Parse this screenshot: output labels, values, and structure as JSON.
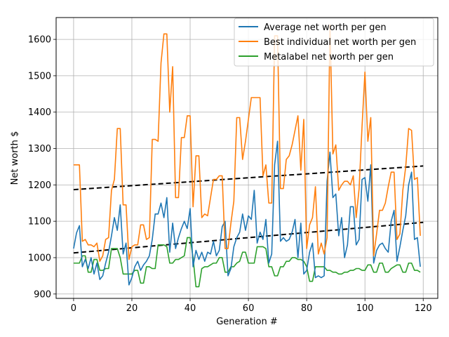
{
  "chart_data": {
    "type": "line",
    "title": "",
    "xlabel": "Generation #",
    "ylabel": "Net worth $",
    "xlim": [
      -6,
      125
    ],
    "ylim": [
      888,
      1660
    ],
    "xticks": [
      0,
      20,
      40,
      60,
      80,
      100,
      120
    ],
    "yticks": [
      900,
      1000,
      1100,
      1200,
      1300,
      1400,
      1500,
      1600
    ],
    "grid": true,
    "legend_position": "top-right",
    "series": [
      {
        "name": "Average net worth per gen",
        "color": "#1f77b4",
        "x": [
          0,
          1,
          2,
          3,
          4,
          5,
          6,
          7,
          8,
          9,
          10,
          11,
          12,
          13,
          14,
          15,
          16,
          17,
          18,
          19,
          20,
          21,
          22,
          23,
          24,
          25,
          26,
          27,
          28,
          29,
          30,
          31,
          32,
          33,
          34,
          35,
          36,
          37,
          38,
          39,
          40,
          41,
          42,
          43,
          44,
          45,
          46,
          47,
          48,
          49,
          50,
          51,
          52,
          53,
          54,
          55,
          56,
          57,
          58,
          59,
          60,
          61,
          62,
          63,
          64,
          65,
          66,
          67,
          68,
          69,
          70,
          71,
          72,
          73,
          74,
          75,
          76,
          77,
          78,
          79,
          80,
          81,
          82,
          83,
          84,
          85,
          86,
          87,
          88,
          89,
          90,
          91,
          92,
          93,
          94,
          95,
          96,
          97,
          98,
          99,
          100,
          101,
          102,
          103,
          104,
          105,
          106,
          107,
          108,
          109,
          110,
          111,
          112,
          113,
          114,
          115,
          116,
          117,
          118,
          119
        ],
        "values": [
          1025,
          1068,
          1088,
          975,
          995,
          970,
          1000,
          955,
          985,
          940,
          950,
          985,
          1015,
          1060,
          1110,
          1075,
          1145,
          1010,
          1040,
          925,
          945,
          975,
          990,
          965,
          980,
          990,
          1005,
          1050,
          1120,
          1120,
          1150,
          1110,
          1165,
          1015,
          1095,
          1025,
          1055,
          1080,
          1100,
          1080,
          1135,
          975,
          1020,
          995,
          1015,
          990,
          1015,
          1010,
          1045,
          1005,
          1020,
          1085,
          1100,
          950,
          970,
          1030,
          1055,
          1070,
          1120,
          1075,
          1115,
          1105,
          1185,
          1040,
          1070,
          1050,
          1105,
          985,
          1010,
          1255,
          1320,
          1045,
          1055,
          1045,
          1050,
          1070,
          1105,
          1000,
          1095,
          955,
          965,
          1015,
          1040,
          945,
          950,
          945,
          950,
          1210,
          1290,
          1165,
          1175,
          1060,
          1110,
          1000,
          1035,
          1140,
          1140,
          1035,
          1050,
          1215,
          1220,
          1155,
          1255,
          985,
          1020,
          1035,
          1040,
          1025,
          1015,
          1100,
          1130,
          990,
          1030,
          1075,
          1115,
          1200,
          1235,
          1050,
          1055,
          975
        ]
      },
      {
        "name": "Best individual net worth per gen",
        "color": "#ff7f0e",
        "x": [
          0,
          1,
          2,
          3,
          4,
          5,
          6,
          7,
          8,
          9,
          10,
          11,
          12,
          13,
          14,
          15,
          16,
          17,
          18,
          19,
          20,
          21,
          22,
          23,
          24,
          25,
          26,
          27,
          28,
          29,
          30,
          31,
          32,
          33,
          34,
          35,
          36,
          37,
          38,
          39,
          40,
          41,
          42,
          43,
          44,
          45,
          46,
          47,
          48,
          49,
          50,
          51,
          52,
          53,
          54,
          55,
          56,
          57,
          58,
          59,
          60,
          61,
          62,
          63,
          64,
          65,
          66,
          67,
          68,
          69,
          70,
          71,
          72,
          73,
          74,
          75,
          76,
          77,
          78,
          79,
          80,
          81,
          82,
          83,
          84,
          85,
          86,
          87,
          88,
          89,
          90,
          91,
          92,
          93,
          94,
          95,
          96,
          97,
          98,
          99,
          100,
          101,
          102,
          103,
          104,
          105,
          106,
          107,
          108,
          109,
          110,
          111,
          112,
          113,
          114,
          115,
          116,
          117,
          118,
          119
        ],
        "values": [
          1255,
          1255,
          1255,
          1045,
          1050,
          1035,
          1035,
          1030,
          1040,
          990,
          1005,
          1050,
          1055,
          1185,
          1215,
          1355,
          1355,
          1145,
          1145,
          995,
          1030,
          1035,
          1035,
          1090,
          1090,
          1050,
          1055,
          1325,
          1325,
          1320,
          1535,
          1615,
          1615,
          1400,
          1525,
          1165,
          1165,
          1330,
          1330,
          1390,
          1390,
          1140,
          1280,
          1280,
          1110,
          1120,
          1115,
          1165,
          1215,
          1215,
          1225,
          1225,
          1025,
          1025,
          1095,
          1155,
          1385,
          1385,
          1270,
          1320,
          1380,
          1440,
          1440,
          1440,
          1440,
          1225,
          1255,
          1150,
          1150,
          1610,
          1610,
          1190,
          1190,
          1270,
          1280,
          1310,
          1350,
          1390,
          1240,
          1380,
          1025,
          1090,
          1110,
          1195,
          1010,
          1040,
          1010,
          1055,
          1640,
          1285,
          1310,
          1185,
          1200,
          1210,
          1210,
          1200,
          1225,
          1110,
          1190,
          1360,
          1510,
          1320,
          1385,
          1005,
          1065,
          1130,
          1130,
          1150,
          1195,
          1235,
          1235,
          1050,
          1065,
          1185,
          1250,
          1355,
          1350,
          1215,
          1220,
          1060
        ]
      },
      {
        "name": "Metalabel net worth per gen",
        "color": "#2ca02c",
        "x": [
          0,
          1,
          2,
          3,
          4,
          5,
          6,
          7,
          8,
          9,
          10,
          11,
          12,
          13,
          14,
          15,
          16,
          17,
          18,
          19,
          20,
          21,
          22,
          23,
          24,
          25,
          26,
          27,
          28,
          29,
          30,
          31,
          32,
          33,
          34,
          35,
          36,
          37,
          38,
          39,
          40,
          41,
          42,
          43,
          44,
          45,
          46,
          47,
          48,
          49,
          50,
          51,
          52,
          53,
          54,
          55,
          56,
          57,
          58,
          59,
          60,
          61,
          62,
          63,
          64,
          65,
          66,
          67,
          68,
          69,
          70,
          71,
          72,
          73,
          74,
          75,
          76,
          77,
          78,
          79,
          80,
          81,
          82,
          83,
          84,
          85,
          86,
          87,
          88,
          89,
          90,
          91,
          92,
          93,
          94,
          95,
          96,
          97,
          98,
          99,
          100,
          101,
          102,
          103,
          104,
          105,
          106,
          107,
          108,
          109,
          110,
          111,
          112,
          113,
          114,
          115,
          116,
          117,
          118,
          119
        ],
        "values": [
          985,
          985,
          985,
          1005,
          1005,
          960,
          960,
          995,
          995,
          965,
          965,
          970,
          970,
          1025,
          1025,
          1025,
          1000,
          955,
          955,
          955,
          955,
          965,
          965,
          930,
          930,
          975,
          975,
          970,
          970,
          1035,
          1035,
          1035,
          1030,
          985,
          985,
          995,
          995,
          1000,
          1005,
          1055,
          1055,
          1000,
          920,
          920,
          970,
          975,
          975,
          980,
          985,
          985,
          1000,
          1000,
          960,
          960,
          975,
          975,
          985,
          990,
          1015,
          1015,
          985,
          985,
          985,
          1030,
          1030,
          1030,
          1025,
          975,
          975,
          950,
          950,
          975,
          975,
          990,
          990,
          1000,
          1000,
          995,
          995,
          990,
          975,
          935,
          935,
          975,
          975,
          975,
          975,
          965,
          965,
          960,
          960,
          955,
          955,
          960,
          960,
          965,
          965,
          970,
          970,
          965,
          965,
          980,
          980,
          960,
          960,
          985,
          985,
          960,
          960,
          970,
          975,
          980,
          980,
          960,
          960,
          985,
          985,
          965,
          965,
          960
        ]
      }
    ],
    "trend_lines": [
      {
        "style": "dashed",
        "color": "#000000",
        "x": [
          0,
          120
        ],
        "values": [
          1187,
          1252
        ]
      },
      {
        "style": "dashed",
        "color": "#000000",
        "x": [
          0,
          120
        ],
        "values": [
          1013,
          1097
        ]
      }
    ]
  }
}
